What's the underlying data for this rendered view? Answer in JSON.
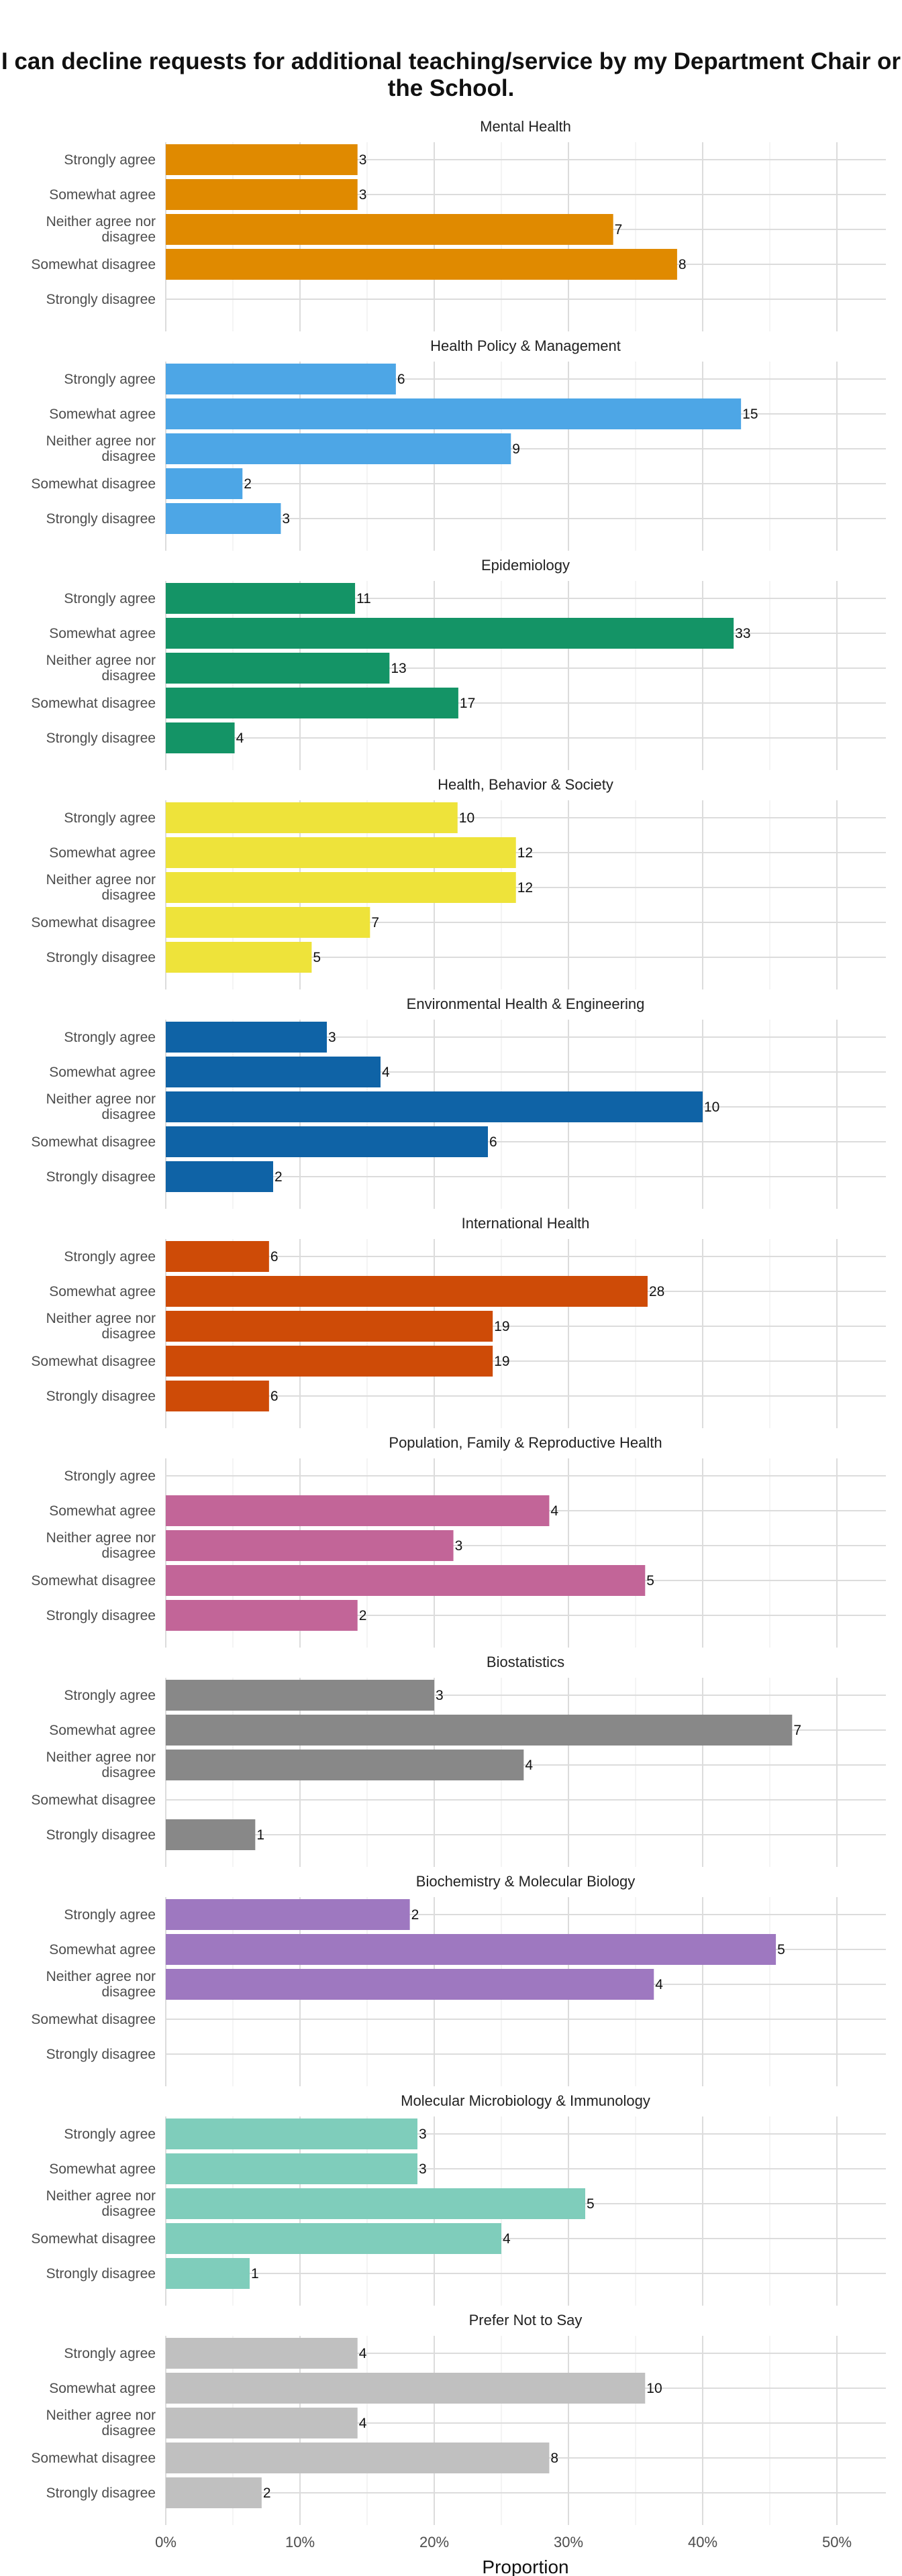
{
  "title": "I can decline requests for additional teaching/service by my Department Chair or the School.",
  "chart_data": {
    "type": "bar",
    "orientation": "horizontal",
    "xlabel": "Proportion",
    "ylabel": "",
    "xlim": [
      0,
      0.54
    ],
    "x_ticks": [
      "0%",
      "10%",
      "20%",
      "30%",
      "40%",
      "50%"
    ],
    "categories": [
      "Strongly agree",
      "Somewhat agree",
      "Neither agree nor disagree",
      "Somewhat disagree",
      "Strongly disagree"
    ],
    "category_lines": [
      [
        "Strongly agree"
      ],
      [
        "Somewhat agree"
      ],
      [
        "Neither agree nor",
        "disagree"
      ],
      [
        "Somewhat disagree"
      ],
      [
        "Strongly disagree"
      ]
    ],
    "value_type": "counts shown as labels; bar length = proportion of facet total",
    "facets": [
      {
        "name": "Mental Health",
        "color": "#E08A00",
        "counts": [
          3,
          3,
          7,
          8,
          0
        ]
      },
      {
        "name": "Health Policy & Management",
        "color": "#4DA6E6",
        "counts": [
          6,
          15,
          9,
          2,
          3
        ]
      },
      {
        "name": "Epidemiology",
        "color": "#149466",
        "counts": [
          11,
          33,
          13,
          17,
          4
        ]
      },
      {
        "name": "Health, Behavior & Society",
        "color": "#EEE33A",
        "counts": [
          10,
          12,
          12,
          7,
          5
        ]
      },
      {
        "name": "Environmental Health & Engineering",
        "color": "#0F63A6",
        "counts": [
          3,
          4,
          10,
          6,
          2
        ]
      },
      {
        "name": "International Health",
        "color": "#CE4B07",
        "counts": [
          6,
          28,
          19,
          19,
          6
        ]
      },
      {
        "name": "Population, Family & Reproductive Health",
        "color": "#C26598",
        "counts": [
          0,
          4,
          3,
          5,
          2
        ]
      },
      {
        "name": "Biostatistics",
        "color": "#888888",
        "counts": [
          3,
          7,
          4,
          0,
          1
        ]
      },
      {
        "name": "Biochemistry & Molecular Biology",
        "color": "#9E78C0",
        "counts": [
          2,
          5,
          4,
          0,
          0
        ]
      },
      {
        "name": "Molecular Microbiology & Immunology",
        "color": "#7FCDBB",
        "counts": [
          3,
          3,
          5,
          4,
          1
        ]
      },
      {
        "name": "Prefer Not to Say",
        "color": "#C0C0C0",
        "counts": [
          4,
          10,
          4,
          8,
          2
        ]
      }
    ],
    "grid": true,
    "legend": "none"
  }
}
